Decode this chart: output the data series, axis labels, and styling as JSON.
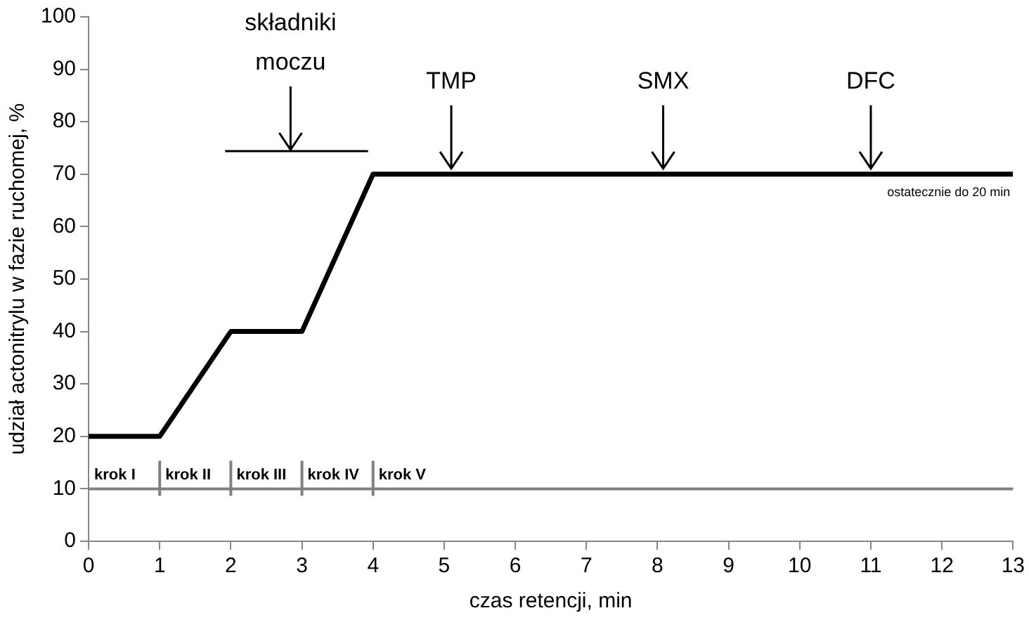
{
  "chart_data": {
    "type": "line",
    "xlabel": "czas retencji, min",
    "ylabel": "udział actonitrylu w fazie ruchomej, %",
    "xlim": [
      0,
      13
    ],
    "xticks": [
      0,
      1,
      2,
      3,
      4,
      5,
      6,
      7,
      8,
      9,
      10,
      11,
      12,
      13
    ],
    "ylim": [
      0,
      100
    ],
    "yticks": [
      0,
      10,
      20,
      30,
      40,
      50,
      60,
      70,
      80,
      90,
      100
    ],
    "grid": false,
    "legend": false,
    "marker": "none",
    "line_style": "solid",
    "series": [
      {
        "color": "#000000",
        "x": [
          0,
          1,
          2,
          3,
          4,
          13
        ],
        "values": [
          20,
          20,
          40,
          40,
          70,
          70
        ]
      },
      {
        "color": "#000000",
        "x": [
          1.92,
          3.93
        ],
        "values": [
          74.4,
          74.4
        ]
      }
    ],
    "ref_lines": [
      {
        "axis": "y",
        "value": 10,
        "color": "#808080"
      }
    ],
    "annotations": [
      {
        "text": "krok I",
        "x": 0,
        "y": 10
      },
      {
        "text": "krok II",
        "x": 1,
        "y": 10
      },
      {
        "text": "krok III",
        "x": 2,
        "y": 10
      },
      {
        "text": "krok IV",
        "x": 3,
        "y": 10
      },
      {
        "text": "krok V",
        "x": 4,
        "y": 10
      },
      {
        "text": "składniki\nmoczu",
        "x": 2.84,
        "y": 74.4
      },
      {
        "text": "TMP",
        "x": 5.1,
        "y": 70
      },
      {
        "text": "SMX",
        "x": 8.08,
        "y": 70
      },
      {
        "text": "DFC",
        "x": 11,
        "y": 70
      },
      "ostatecznie do 20 min"
    ]
  }
}
